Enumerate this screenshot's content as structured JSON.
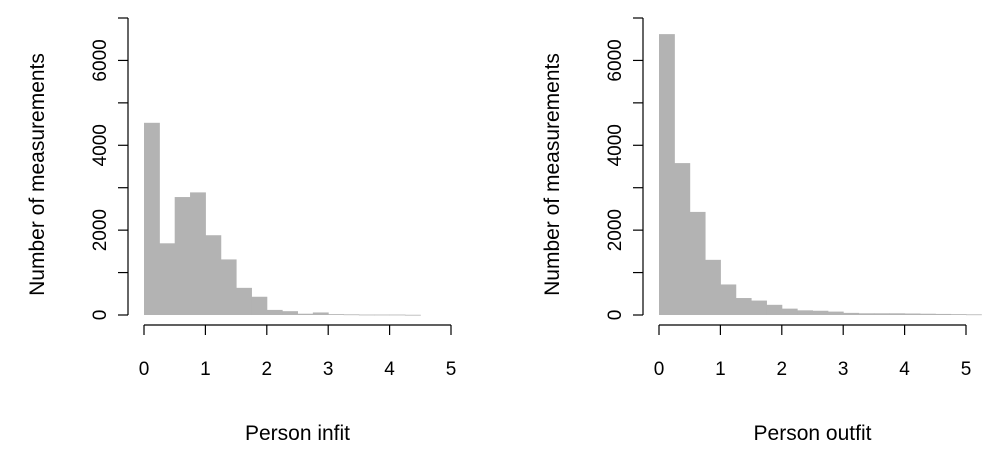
{
  "colors": {
    "bar_fill": "#b3b3b3",
    "axis": "#000000",
    "background": "#ffffff"
  },
  "chart_data": [
    {
      "type": "bar",
      "title": "",
      "xlabel": "Person infit",
      "ylabel": "Number of measurements",
      "xlim": [
        0,
        5
      ],
      "ylim": [
        0,
        7000
      ],
      "x_ticks": [
        "0",
        "1",
        "2",
        "3",
        "4",
        "5"
      ],
      "y_ticks": [
        "0",
        "2000",
        "4000",
        "6000"
      ],
      "grid": false,
      "bin_width": 0.25,
      "bins": [
        {
          "x0": 0.0,
          "x1": 0.25,
          "count": 4530
        },
        {
          "x0": 0.25,
          "x1": 0.5,
          "count": 1690
        },
        {
          "x0": 0.5,
          "x1": 0.75,
          "count": 2780
        },
        {
          "x0": 0.75,
          "x1": 1.0,
          "count": 2890
        },
        {
          "x0": 1.0,
          "x1": 1.25,
          "count": 1880
        },
        {
          "x0": 1.25,
          "x1": 1.5,
          "count": 1310
        },
        {
          "x0": 1.5,
          "x1": 1.75,
          "count": 640
        },
        {
          "x0": 1.75,
          "x1": 2.0,
          "count": 430
        },
        {
          "x0": 2.0,
          "x1": 2.25,
          "count": 120
        },
        {
          "x0": 2.25,
          "x1": 2.5,
          "count": 90
        },
        {
          "x0": 2.5,
          "x1": 2.75,
          "count": 30
        },
        {
          "x0": 2.75,
          "x1": 3.0,
          "count": 60
        },
        {
          "x0": 3.0,
          "x1": 3.25,
          "count": 20
        },
        {
          "x0": 3.25,
          "x1": 3.5,
          "count": 15
        },
        {
          "x0": 3.5,
          "x1": 3.75,
          "count": 10
        },
        {
          "x0": 3.75,
          "x1": 4.0,
          "count": 10
        },
        {
          "x0": 4.0,
          "x1": 4.25,
          "count": 10
        },
        {
          "x0": 4.25,
          "x1": 4.5,
          "count": 5
        }
      ]
    },
    {
      "type": "bar",
      "title": "",
      "xlabel": "Person outfit",
      "ylabel": "Number of measurements",
      "xlim": [
        0,
        5
      ],
      "ylim": [
        0,
        7000
      ],
      "x_ticks": [
        "0",
        "1",
        "2",
        "3",
        "4",
        "5"
      ],
      "y_ticks": [
        "0",
        "2000",
        "4000",
        "6000"
      ],
      "grid": false,
      "bin_width": 0.25,
      "bins": [
        {
          "x0": 0.0,
          "x1": 0.25,
          "count": 6620
        },
        {
          "x0": 0.25,
          "x1": 0.5,
          "count": 3580
        },
        {
          "x0": 0.5,
          "x1": 0.75,
          "count": 2430
        },
        {
          "x0": 0.75,
          "x1": 1.0,
          "count": 1300
        },
        {
          "x0": 1.0,
          "x1": 1.25,
          "count": 720
        },
        {
          "x0": 1.25,
          "x1": 1.5,
          "count": 400
        },
        {
          "x0": 1.5,
          "x1": 1.75,
          "count": 340
        },
        {
          "x0": 1.75,
          "x1": 2.0,
          "count": 240
        },
        {
          "x0": 2.0,
          "x1": 2.25,
          "count": 150
        },
        {
          "x0": 2.25,
          "x1": 2.5,
          "count": 110
        },
        {
          "x0": 2.5,
          "x1": 2.75,
          "count": 100
        },
        {
          "x0": 2.75,
          "x1": 3.0,
          "count": 80
        },
        {
          "x0": 3.0,
          "x1": 3.25,
          "count": 50
        },
        {
          "x0": 3.25,
          "x1": 3.5,
          "count": 40
        },
        {
          "x0": 3.5,
          "x1": 3.75,
          "count": 40
        },
        {
          "x0": 3.75,
          "x1": 4.0,
          "count": 40
        },
        {
          "x0": 4.0,
          "x1": 4.25,
          "count": 35
        },
        {
          "x0": 4.25,
          "x1": 4.5,
          "count": 30
        },
        {
          "x0": 4.5,
          "x1": 4.75,
          "count": 25
        },
        {
          "x0": 4.75,
          "x1": 5.0,
          "count": 20
        },
        {
          "x0": 5.0,
          "x1": 5.25,
          "count": 15
        }
      ]
    }
  ]
}
